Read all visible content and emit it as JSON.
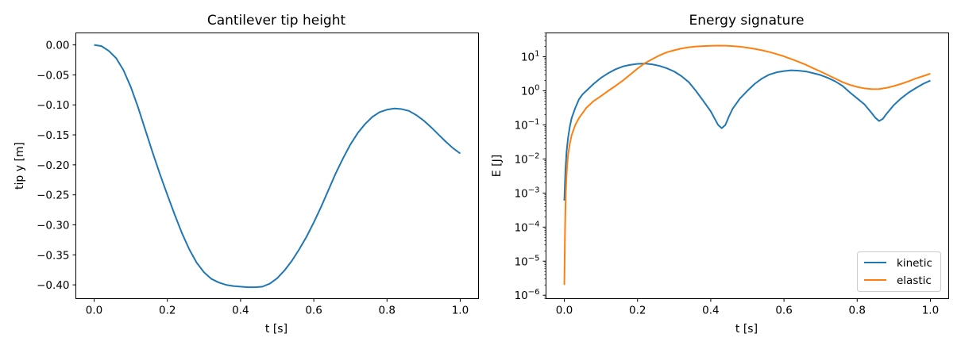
{
  "chart_data": [
    {
      "type": "line",
      "title": "Cantilever tip height",
      "xlabel": "t [s]",
      "ylabel": "tip y [m]",
      "xlim": [
        -0.05,
        1.05
      ],
      "ylim": [
        -0.423,
        0.02
      ],
      "grid": false,
      "x_ticks": [
        "0.0",
        "0.2",
        "0.4",
        "0.6",
        "0.8",
        "1.0"
      ],
      "y_ticks": [
        "0.00",
        "−0.05",
        "−0.10",
        "−0.15",
        "−0.20",
        "−0.25",
        "−0.30",
        "−0.35",
        "−0.40"
      ],
      "series": [
        {
          "color": "#1f77b4",
          "x": [
            0.0,
            0.02,
            0.04,
            0.06,
            0.08,
            0.1,
            0.12,
            0.14,
            0.16,
            0.18,
            0.2,
            0.22,
            0.24,
            0.26,
            0.28,
            0.3,
            0.32,
            0.34,
            0.36,
            0.38,
            0.4,
            0.42,
            0.44,
            0.46,
            0.48,
            0.5,
            0.52,
            0.54,
            0.56,
            0.58,
            0.6,
            0.62,
            0.64,
            0.66,
            0.68,
            0.7,
            0.72,
            0.74,
            0.76,
            0.78,
            0.8,
            0.82,
            0.84,
            0.86,
            0.88,
            0.9,
            0.92,
            0.94,
            0.96,
            0.98,
            1.0
          ],
          "y": [
            0.0,
            -0.002,
            -0.01,
            -0.022,
            -0.042,
            -0.07,
            -0.104,
            -0.142,
            -0.18,
            -0.216,
            -0.25,
            -0.283,
            -0.314,
            -0.341,
            -0.363,
            -0.379,
            -0.39,
            -0.396,
            -0.4,
            -0.402,
            -0.403,
            -0.404,
            -0.404,
            -0.403,
            -0.398,
            -0.389,
            -0.376,
            -0.36,
            -0.341,
            -0.32,
            -0.296,
            -0.27,
            -0.242,
            -0.214,
            -0.189,
            -0.166,
            -0.147,
            -0.132,
            -0.12,
            -0.112,
            -0.108,
            -0.106,
            -0.107,
            -0.11,
            -0.117,
            -0.126,
            -0.137,
            -0.149,
            -0.161,
            -0.172,
            -0.181
          ]
        }
      ]
    },
    {
      "type": "line",
      "title": "Energy signature",
      "xlabel": "t [s]",
      "ylabel": "E [J]",
      "xlim": [
        -0.05,
        1.05
      ],
      "ylim_log10": [
        -6.1,
        1.7
      ],
      "yscale": "log",
      "grid": false,
      "legend_position": "bottom-right",
      "x_ticks": [
        "0.0",
        "0.2",
        "0.4",
        "0.6",
        "0.8",
        "1.0"
      ],
      "y_ticks": [
        {
          "base": "10",
          "exp": "1"
        },
        {
          "base": "10",
          "exp": "0"
        },
        {
          "base": "10",
          "exp": "−1"
        },
        {
          "base": "10",
          "exp": "−2"
        },
        {
          "base": "10",
          "exp": "−3"
        },
        {
          "base": "10",
          "exp": "−4"
        },
        {
          "base": "10",
          "exp": "−5"
        },
        {
          "base": "10",
          "exp": "−6"
        }
      ],
      "series": [
        {
          "name": "kinetic",
          "color": "#1f77b4",
          "x": [
            0.0,
            0.003,
            0.006,
            0.01,
            0.015,
            0.02,
            0.03,
            0.04,
            0.05,
            0.06,
            0.08,
            0.1,
            0.12,
            0.14,
            0.16,
            0.18,
            0.2,
            0.22,
            0.24,
            0.26,
            0.28,
            0.3,
            0.32,
            0.34,
            0.36,
            0.38,
            0.4,
            0.41,
            0.42,
            0.43,
            0.44,
            0.45,
            0.46,
            0.48,
            0.5,
            0.52,
            0.54,
            0.56,
            0.58,
            0.6,
            0.62,
            0.64,
            0.66,
            0.68,
            0.7,
            0.72,
            0.74,
            0.76,
            0.78,
            0.8,
            0.82,
            0.84,
            0.85,
            0.86,
            0.87,
            0.88,
            0.9,
            0.92,
            0.94,
            0.96,
            0.98,
            1.0
          ],
          "y": [
            0.0006,
            0.0045,
            0.0158,
            0.0398,
            0.0891,
            0.1585,
            0.3162,
            0.5623,
            0.7943,
            1.0,
            1.6,
            2.4,
            3.3,
            4.3,
            5.2,
            5.8,
            6.2,
            6.3,
            6.0,
            5.4,
            4.6,
            3.7,
            2.7,
            1.8,
            0.98,
            0.5,
            0.25,
            0.158,
            0.1,
            0.08,
            0.1,
            0.18,
            0.3,
            0.6,
            1.0,
            1.6,
            2.3,
            3.0,
            3.5,
            3.8,
            4.0,
            3.9,
            3.7,
            3.3,
            2.9,
            2.4,
            1.9,
            1.4,
            0.9,
            0.6,
            0.4,
            0.22,
            0.16,
            0.13,
            0.15,
            0.21,
            0.38,
            0.6,
            0.88,
            1.2,
            1.6,
            2.0
          ]
        },
        {
          "name": "elastic",
          "color": "#ff7f0e",
          "x": [
            0.0,
            0.002,
            0.004,
            0.006,
            0.008,
            0.01,
            0.015,
            0.02,
            0.03,
            0.04,
            0.05,
            0.06,
            0.08,
            0.1,
            0.12,
            0.14,
            0.16,
            0.18,
            0.2,
            0.22,
            0.24,
            0.26,
            0.28,
            0.3,
            0.32,
            0.34,
            0.36,
            0.38,
            0.4,
            0.42,
            0.44,
            0.46,
            0.48,
            0.5,
            0.52,
            0.54,
            0.56,
            0.58,
            0.6,
            0.62,
            0.64,
            0.66,
            0.68,
            0.7,
            0.72,
            0.74,
            0.76,
            0.78,
            0.8,
            0.82,
            0.84,
            0.86,
            0.88,
            0.9,
            0.92,
            0.94,
            0.96,
            0.98,
            1.0
          ],
          "y": [
            2e-06,
            0.0001,
            0.001,
            0.0032,
            0.0071,
            0.0126,
            0.0282,
            0.0501,
            0.1,
            0.1585,
            0.2239,
            0.3162,
            0.5,
            0.7,
            1.0,
            1.4,
            2.0,
            3.0,
            4.5,
            6.5,
            8.5,
            11.0,
            13.5,
            15.5,
            17.5,
            19.0,
            20.0,
            20.6,
            21.0,
            21.2,
            21.1,
            20.6,
            19.8,
            18.5,
            17.0,
            15.5,
            13.8,
            12.0,
            10.3,
            8.6,
            7.1,
            5.8,
            4.6,
            3.7,
            2.9,
            2.3,
            1.8,
            1.5,
            1.3,
            1.18,
            1.12,
            1.13,
            1.22,
            1.38,
            1.6,
            1.9,
            2.3,
            2.7,
            3.2
          ]
        }
      ]
    }
  ]
}
